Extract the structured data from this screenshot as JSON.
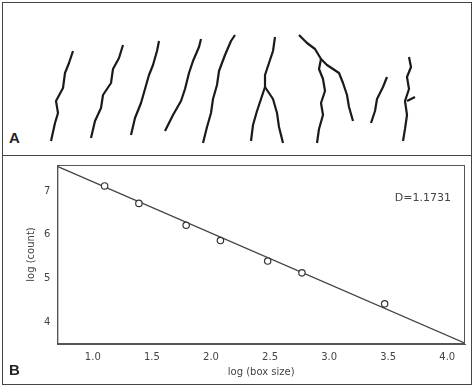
{
  "panel_labels": [
    "A",
    "B"
  ],
  "chart_data": {
    "type": "scatter",
    "x_label": "log (box size)",
    "y_label": "log (count)",
    "annotation": "D=1.1731",
    "x": [
      1.1,
      1.39,
      1.79,
      2.08,
      2.48,
      2.77,
      3.47
    ],
    "series": [
      {
        "type": "scatter",
        "marker": "circle",
        "color": "#333333",
        "values": [
          7.12,
          6.72,
          6.22,
          5.87,
          5.4,
          5.13,
          4.42
        ]
      },
      {
        "type": "line",
        "line_style": "solid",
        "color": "#444444",
        "x": [
          0.7,
          4.15
        ],
        "values": [
          7.57,
          3.52
        ]
      }
    ],
    "xlim": [
      0.7,
      4.15
    ],
    "xticks": [
      {
        "value": 1,
        "label": "1.0"
      },
      1.5,
      {
        "value": 2,
        "label": "2.0"
      },
      2.5,
      {
        "value": 3,
        "label": "3.0"
      },
      3.5,
      {
        "value": 4,
        "label": "4.0"
      }
    ],
    "ylim": [
      3.5,
      7.6
    ],
    "yticks": [
      4,
      5,
      6,
      7
    ],
    "grid": false
  }
}
